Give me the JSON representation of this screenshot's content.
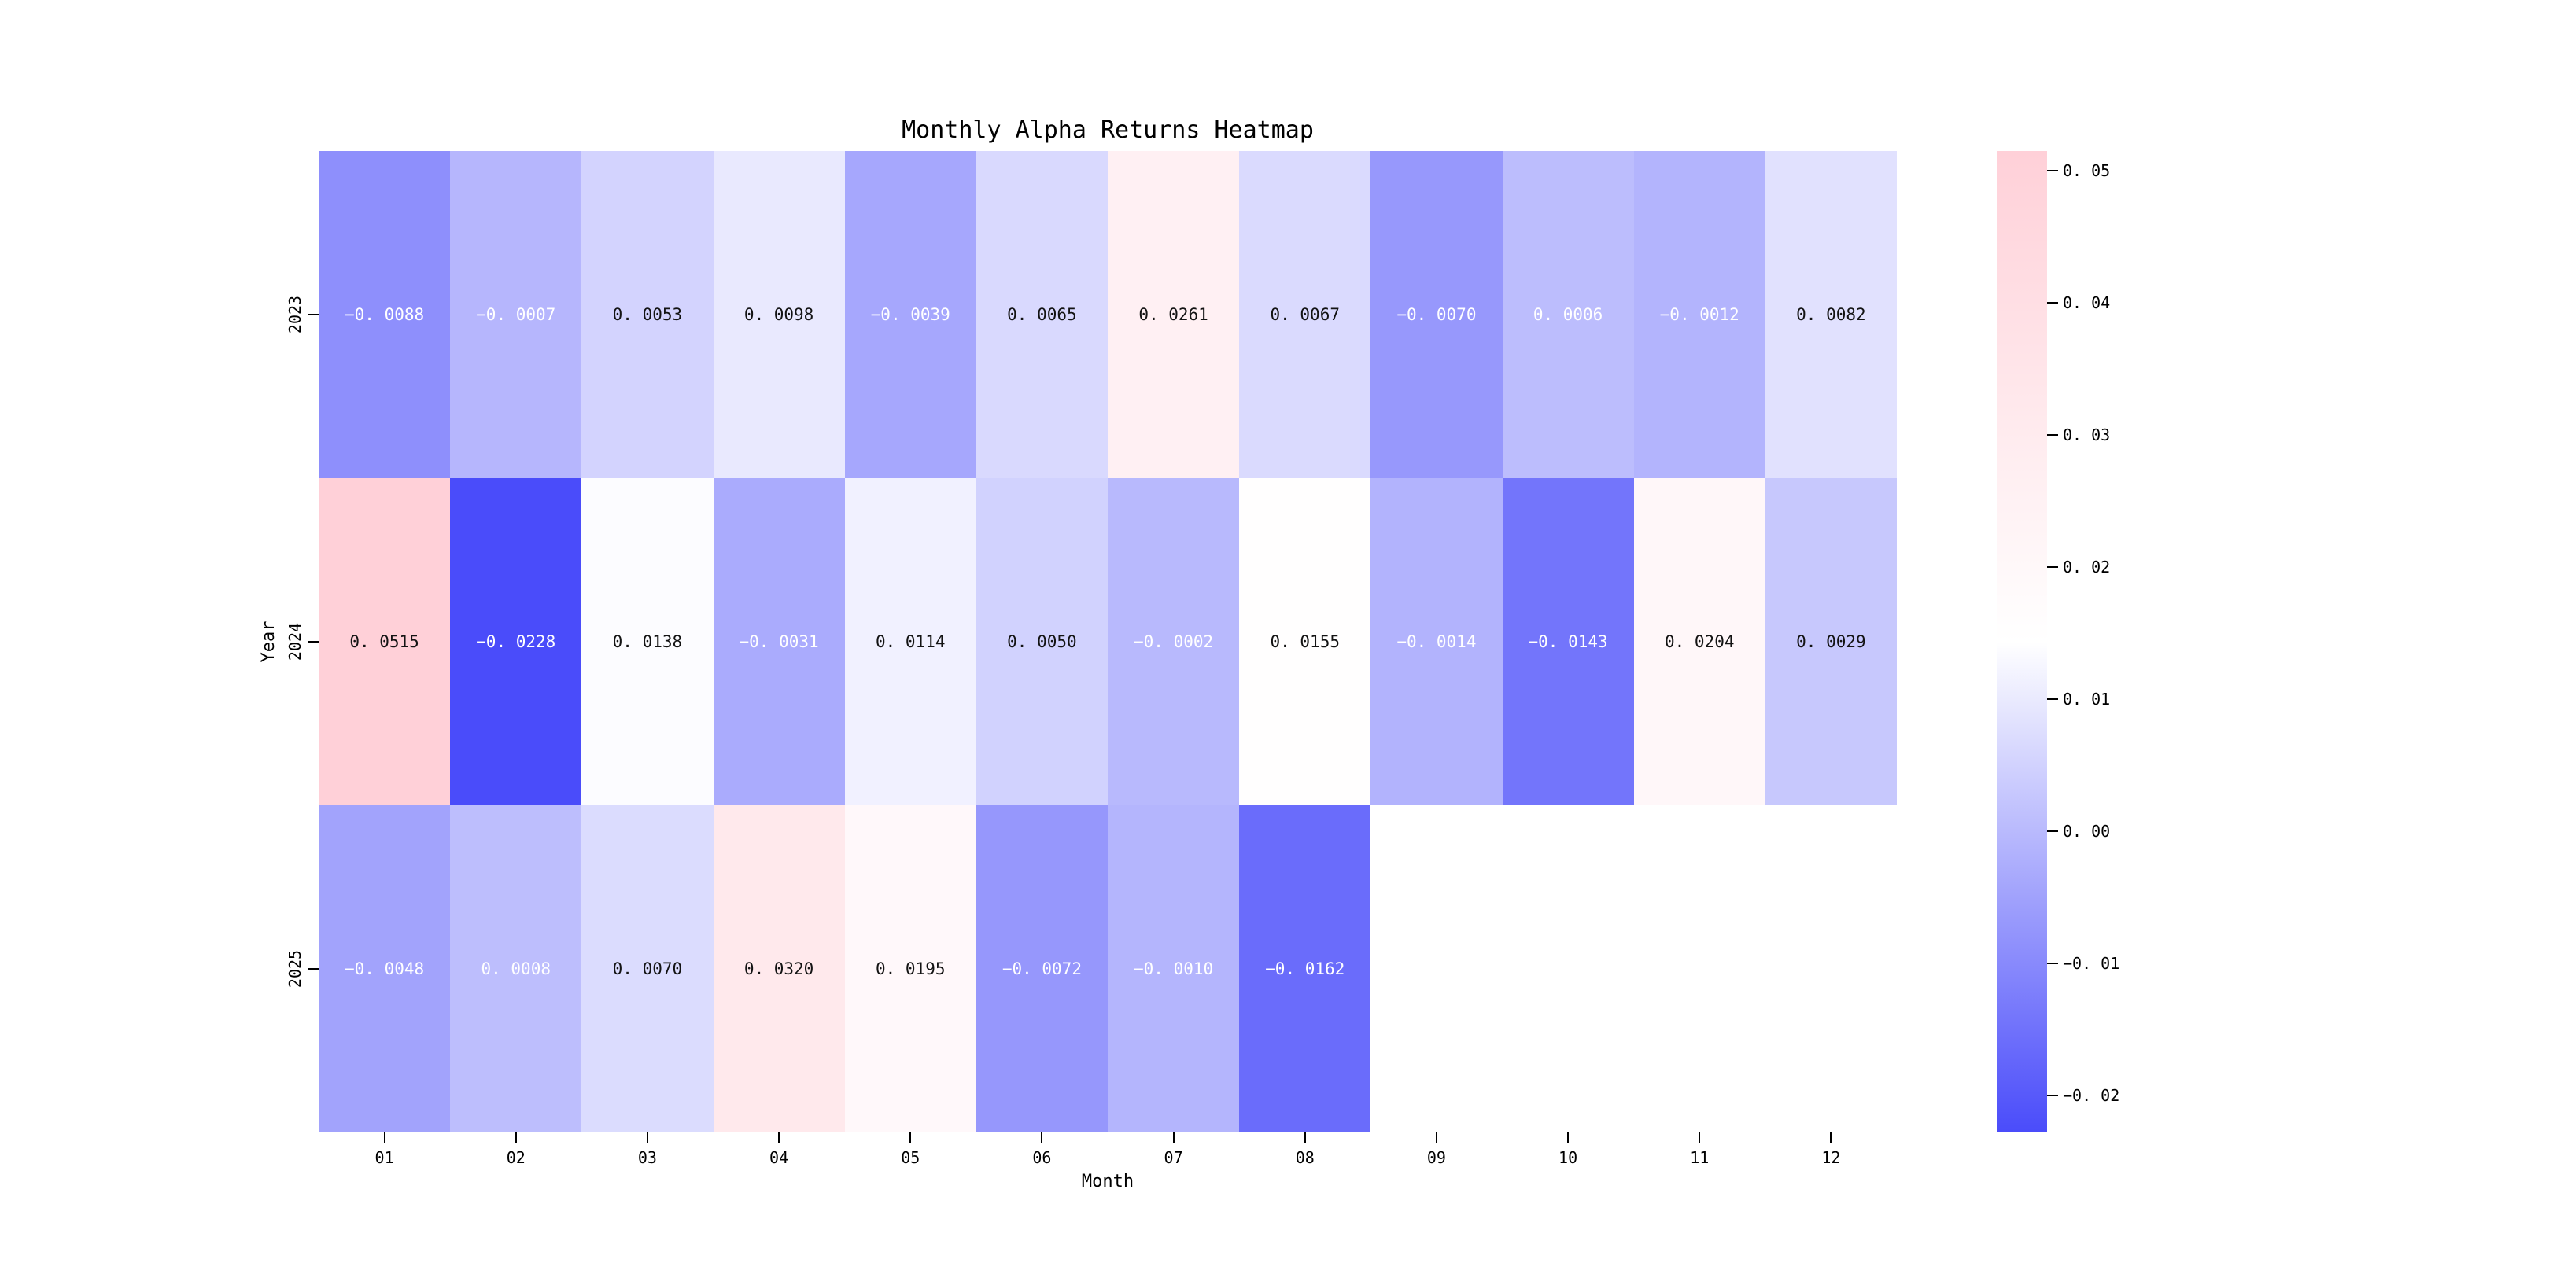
{
  "chart_data": {
    "type": "heatmap",
    "title": "Monthly Alpha Returns Heatmap",
    "xlabel": "Month",
    "ylabel": "Year",
    "columns": [
      "01",
      "02",
      "03",
      "04",
      "05",
      "06",
      "07",
      "08",
      "09",
      "10",
      "11",
      "12"
    ],
    "rows": [
      "2023",
      "2024",
      "2025"
    ],
    "values": [
      [
        -0.0088,
        -0.0007,
        0.0053,
        0.0098,
        -0.0039,
        0.0065,
        0.0261,
        0.0067,
        -0.007,
        0.0006,
        -0.0012,
        0.0082
      ],
      [
        0.0515,
        -0.0228,
        0.0138,
        -0.0031,
        0.0114,
        0.005,
        -0.0002,
        0.0155,
        -0.0014,
        -0.0143,
        0.0204,
        0.0029
      ],
      [
        -0.0048,
        0.0008,
        0.007,
        0.032,
        0.0195,
        -0.0072,
        -0.001,
        -0.0162,
        null,
        null,
        null,
        null
      ]
    ],
    "value_decimals": 4,
    "colorbar": {
      "vmin": -0.0228,
      "vmax": 0.0515,
      "ticks": [
        0.05,
        0.04,
        0.03,
        0.02,
        0.01,
        0.0,
        -0.01,
        -0.02
      ],
      "tick_decimals": 2,
      "color_min": "#4a4cfa",
      "color_mid": "#ffffff",
      "color_max": "#ffd0d8"
    },
    "annotation_text_light": "#ffffff",
    "annotation_text_dark": "#131313",
    "grid": false,
    "legend_position": "right-colorbar"
  }
}
